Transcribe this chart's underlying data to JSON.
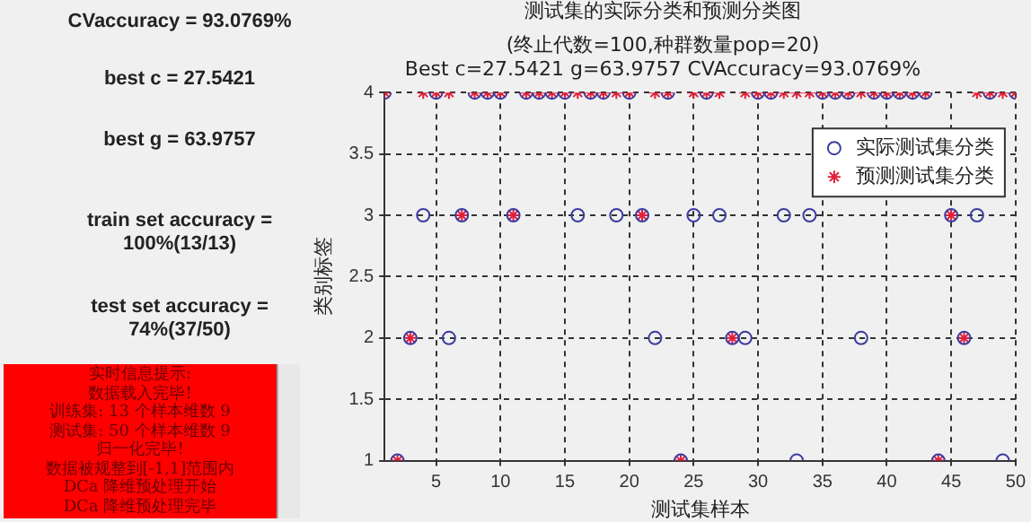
{
  "chart_data": {
    "type": "scatter",
    "title": "测试集的实际分类和预测分类图",
    "subtitle": "(终止代数=100,种群数量pop=20)\nBest c=27.5421 g=63.9757 CVAccuracy=93.0769%",
    "xlabel": "测试集样本",
    "ylabel": "类别标签",
    "x": [
      1,
      2,
      3,
      4,
      5,
      6,
      7,
      8,
      9,
      10,
      11,
      12,
      13,
      14,
      15,
      16,
      17,
      18,
      19,
      20,
      21,
      22,
      23,
      24,
      25,
      26,
      27,
      28,
      29,
      30,
      31,
      32,
      33,
      34,
      35,
      36,
      37,
      38,
      39,
      40,
      41,
      42,
      43,
      44,
      45,
      46,
      47,
      48,
      49,
      50
    ],
    "series": [
      {
        "name": "实际测试集分类",
        "color": "#3c3ca0",
        "marker": "circle",
        "values": [
          4,
          1,
          2,
          3,
          4,
          2,
          3,
          4,
          4,
          4,
          3,
          4,
          4,
          4,
          4,
          3,
          4,
          4,
          3,
          4,
          3,
          2,
          4,
          1,
          3,
          4,
          3,
          2,
          2,
          4,
          4,
          3,
          1,
          3,
          4,
          4,
          4,
          2,
          4,
          4,
          4,
          4,
          4,
          1,
          3,
          2,
          3,
          4,
          1,
          4
        ]
      },
      {
        "name": "预测测试集分类",
        "color": "#e0203a",
        "marker": "cross",
        "values": [
          4,
          1,
          2,
          4,
          4,
          4,
          3,
          4,
          4,
          4,
          3,
          4,
          4,
          4,
          4,
          4,
          4,
          4,
          4,
          4,
          3,
          4,
          4,
          1,
          4,
          4,
          4,
          2,
          4,
          4,
          4,
          4,
          4,
          4,
          4,
          4,
          4,
          4,
          4,
          4,
          4,
          4,
          4,
          1,
          3,
          2,
          4,
          4,
          4,
          4
        ]
      }
    ],
    "xlim": [
      1,
      50
    ],
    "xticks": [
      5,
      10,
      15,
      20,
      25,
      30,
      35,
      40,
      45,
      50
    ],
    "ylim": [
      1,
      4
    ],
    "yticks": [
      1,
      1.5,
      2,
      2.5,
      3,
      3.5,
      4
    ],
    "grid": true,
    "line_style": "dashed",
    "legend": "top right",
    "annotations": [
      "CVaccuracy = 93.0769%",
      "best c = 27.5421",
      "best g = 63.9757",
      "train set accuracy =\n100%(13/13)",
      "test set accuracy =\n74%(37/50)",
      "实时信息提示:\n数据载入完毕!\n训练集: 13 个样本维数 9\n测试集: 50 个样本维数 9\n归一化完毕!\n数据被规整到[-1,1]范围内\nDCa 降维预处理开始\nDCa 降维预处理完毕"
    ]
  }
}
